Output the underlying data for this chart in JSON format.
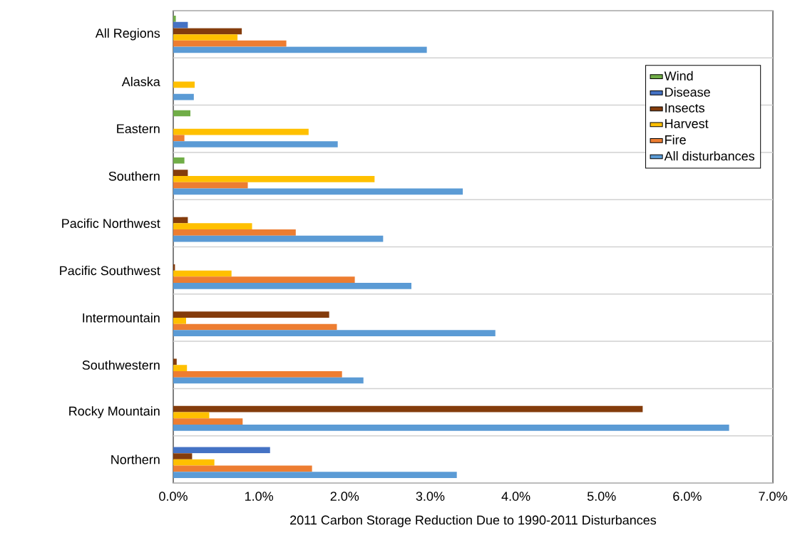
{
  "chart_data": {
    "type": "bar",
    "orientation": "horizontal",
    "xlabel": "2011 Carbon Storage Reduction Due to 1990-2011 Disturbances",
    "categories": [
      "All Regions",
      "Alaska",
      "Eastern",
      "Southern",
      "Pacific Northwest",
      "Pacific Southwest",
      "Intermountain",
      "Southwestern",
      "Rocky Mountain",
      "Northern"
    ],
    "series": [
      {
        "name": "Wind",
        "color": "#70ad47",
        "values": [
          0.03,
          null,
          0.2,
          0.13,
          null,
          null,
          null,
          null,
          null,
          null
        ]
      },
      {
        "name": "Disease",
        "color": "#4472c4",
        "values": [
          0.17,
          null,
          null,
          null,
          null,
          null,
          null,
          null,
          null,
          1.13
        ]
      },
      {
        "name": "Insects",
        "color": "#843c0c",
        "values": [
          0.8,
          null,
          null,
          0.17,
          0.17,
          0.02,
          1.82,
          0.04,
          5.48,
          0.22
        ]
      },
      {
        "name": "Harvest",
        "color": "#ffc000",
        "values": [
          0.75,
          0.25,
          1.58,
          2.35,
          0.92,
          0.68,
          0.15,
          0.16,
          0.42,
          0.48
        ]
      },
      {
        "name": "Fire",
        "color": "#ed7d31",
        "values": [
          1.32,
          null,
          0.13,
          0.87,
          1.43,
          2.12,
          1.91,
          1.97,
          0.81,
          1.62
        ]
      },
      {
        "name": "All disturbances",
        "color": "#5b9bd5",
        "values": [
          2.96,
          0.24,
          1.92,
          3.38,
          2.45,
          2.78,
          3.76,
          2.22,
          6.49,
          3.31
        ]
      }
    ],
    "xlim": [
      0,
      7
    ],
    "xticks": [
      {
        "value": 0,
        "label": "0.0%"
      },
      {
        "value": 1,
        "label": "1.0%"
      },
      {
        "value": 2,
        "label": "2.0%"
      },
      {
        "value": 3,
        "label": "3.0%"
      },
      {
        "value": 4,
        "label": "4.0%"
      },
      {
        "value": 5,
        "label": "5.0%"
      },
      {
        "value": 6,
        "label": "6.0%"
      },
      {
        "value": 7,
        "label": "7.0%"
      }
    ],
    "grid": "y",
    "legend": "top right"
  }
}
